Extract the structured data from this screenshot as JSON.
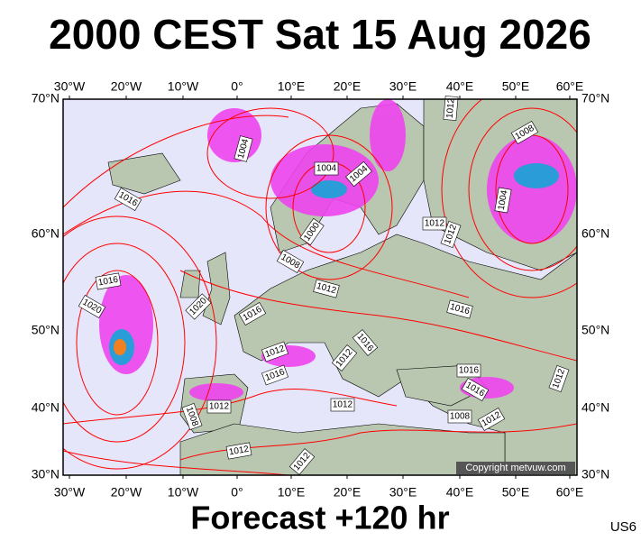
{
  "header": {
    "title": "2000 CEST Sat 15 Aug 2026"
  },
  "map": {
    "lon_labels": [
      "30°W",
      "20°W",
      "10°W",
      "0°",
      "10°E",
      "20°E",
      "30°E",
      "40°E",
      "50°E",
      "60°E"
    ],
    "lat_labels": [
      "70°N",
      "60°N",
      "50°N",
      "40°N",
      "30°N"
    ],
    "isobar_labels": [
      "1004",
      "1004",
      "1004",
      "1016",
      "1000",
      "1008",
      "1012",
      "1012",
      "1012",
      "1016",
      "1020",
      "1020",
      "1016",
      "1016",
      "1016",
      "1012",
      "1012",
      "1016",
      "1012",
      "1008",
      "1012",
      "1016",
      "1016",
      "1008",
      "1012",
      "1012",
      "1012",
      "1008",
      "1004",
      "1012",
      "1012"
    ],
    "copyright": "Copyright metvuw.com"
  },
  "footer": {
    "forecast": "Forecast +120 hr",
    "code": "US6"
  }
}
